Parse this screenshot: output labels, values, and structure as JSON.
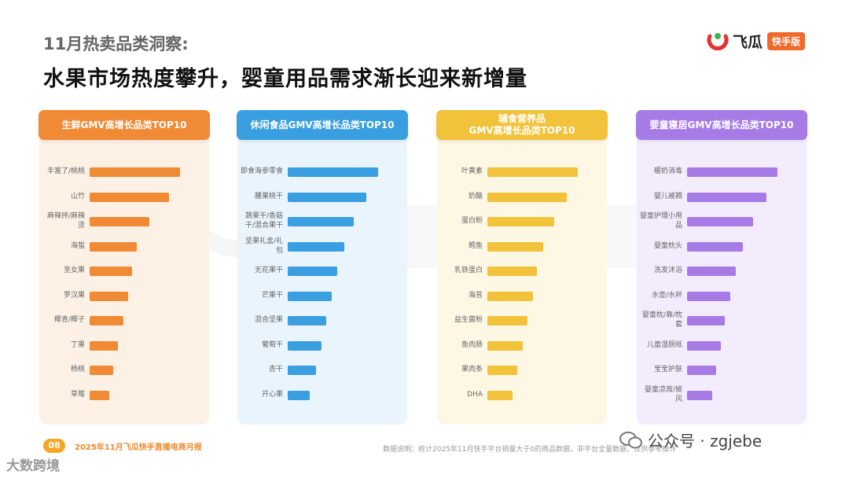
{
  "header": {
    "subtitle": "11月热卖品类洞察:",
    "title": "水果市场热度攀升，婴童用品需求渐长迎来新增量"
  },
  "logo": {
    "name": "飞瓜",
    "badge": "快手版"
  },
  "colors": {
    "fresh": "#f08a35",
    "snack": "#3a9fe0",
    "nutrition": "#f2c23a",
    "baby": "#a67be6"
  },
  "footer": {
    "page_number": "08",
    "report": "2025年11月飞瓜快手直播电商月报",
    "note": "数据说明：统计2025年11月快手平台销量大于0的商品数据，非平台全量数据，仅供参考操作",
    "wechat": "公众号 · zgjebe",
    "corner_watermark": "大数跨境"
  },
  "chart_data": [
    {
      "type": "bar",
      "title": "生鲜GMV高增长品类TOP10",
      "categories": [
        "丰富了/桃桃",
        "山竹",
        "麻辣拌/麻辣烫",
        "海蜇",
        "圣女果",
        "罗汉果",
        "椰青/椰子",
        "丁果",
        "杨桃",
        "草莓"
      ],
      "values": [
        100,
        88,
        66,
        52,
        47,
        43,
        37,
        31,
        26,
        22
      ]
    },
    {
      "type": "bar",
      "title": "休闲食品GMV高增长品类TOP10",
      "categories": [
        "即食海参零食",
        "腰果桃干",
        "蔬果干/香菇干/混合果干",
        "坚果礼盒/礼包",
        "无花果干",
        "芒果干",
        "混合坚果",
        "葡萄干",
        "杏干",
        "开心果"
      ],
      "values": [
        100,
        87,
        73,
        63,
        55,
        49,
        43,
        37,
        31,
        24
      ]
    },
    {
      "type": "bar",
      "title": "辅食营养品\nGMV高增长品类TOP10",
      "categories": [
        "叶黄素",
        "奶酪",
        "蛋白粉",
        "鳕鱼",
        "乳铁蛋白",
        "海苔",
        "益生菌粉",
        "鱼肉肠",
        "果肉条",
        "DHA"
      ],
      "values": [
        100,
        88,
        74,
        62,
        55,
        50,
        44,
        39,
        33,
        28
      ]
    },
    {
      "type": "bar",
      "title": "婴童寝居GMV高增长品类TOP10",
      "categories": [
        "暖奶消毒",
        "婴儿被褥",
        "婴童护理小用品",
        "婴童枕头",
        "洗发沐浴",
        "水壶/水杯",
        "婴童枕/靠/枕套",
        "儿童湿厕纸",
        "宝宝护肤",
        "婴童凉席/披风"
      ],
      "values": [
        100,
        88,
        73,
        62,
        54,
        48,
        42,
        37,
        32,
        28
      ]
    }
  ]
}
